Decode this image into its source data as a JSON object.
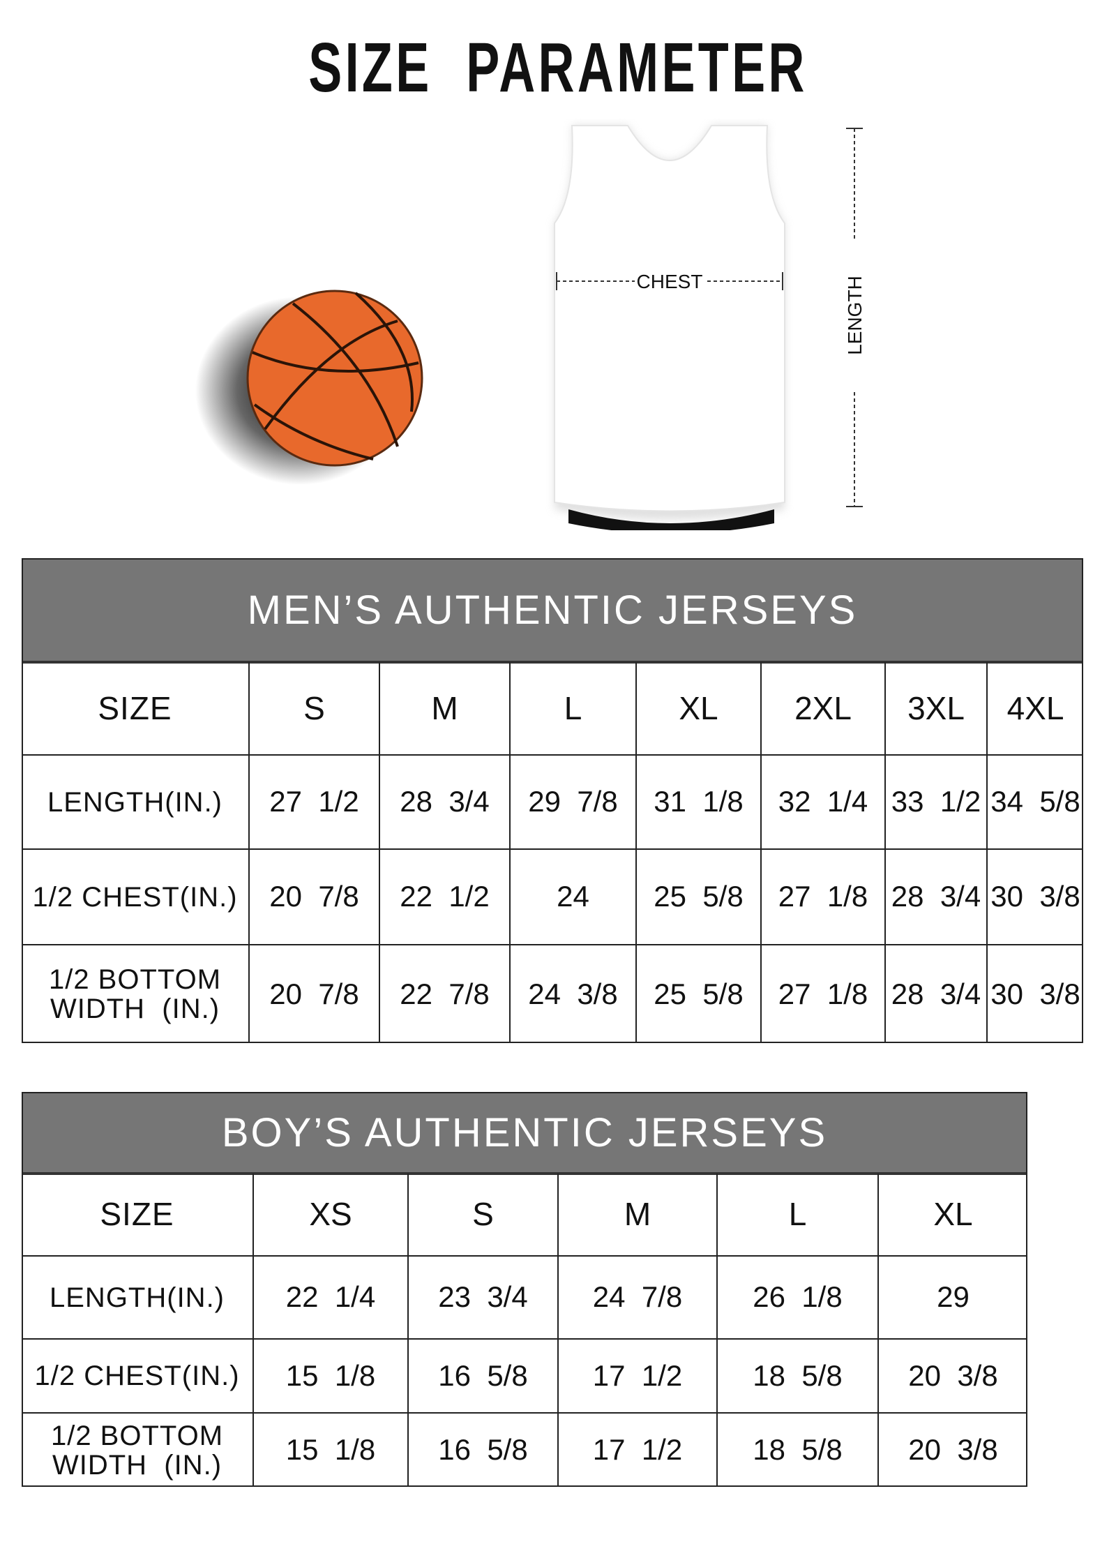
{
  "title": "SIZE  PARAMETER",
  "diagram": {
    "chest_label": "CHEST",
    "length_label": "LENGTH"
  },
  "colors": {
    "header_bg": "#767676",
    "ball": "#e8692c"
  },
  "mens": {
    "title": "MEN’S AUTHENTIC JERSEYS",
    "columns": [
      "SIZE",
      "S",
      "M",
      "L",
      "XL",
      "2XL",
      "3XL",
      "4XL"
    ],
    "rows": [
      [
        "LENGTH(IN.)",
        "27  1/2",
        "28  3/4",
        "29  7/8",
        "31  1/8",
        "32  1/4",
        "33  1/2",
        "34  5/8"
      ],
      [
        "1/2 CHEST(IN.)",
        "20  7/8",
        "22  1/2",
        "24",
        "25  5/8",
        "27  1/8",
        "28  3/4",
        "30  3/8"
      ],
      [
        "1/2 BOTTOM\nWIDTH  (IN.)",
        "20  7/8",
        "22  7/8",
        "24  3/8",
        "25  5/8",
        "27  1/8",
        "28  3/4",
        "30  3/8"
      ]
    ]
  },
  "boys": {
    "title": "BOY’S AUTHENTIC JERSEYS",
    "columns": [
      "SIZE",
      "XS",
      "S",
      "M",
      "L",
      "XL"
    ],
    "rows": [
      [
        "LENGTH(IN.)",
        "22  1/4",
        "23  3/4",
        "24  7/8",
        "26  1/8",
        "29"
      ],
      [
        "1/2 CHEST(IN.)",
        "15  1/8",
        "16  5/8",
        "17  1/2",
        "18  5/8",
        "20  3/8"
      ],
      [
        "1/2 BOTTOM\nWIDTH  (IN.)",
        "15  1/8",
        "16  5/8",
        "17  1/2",
        "18  5/8",
        "20  3/8"
      ]
    ]
  }
}
